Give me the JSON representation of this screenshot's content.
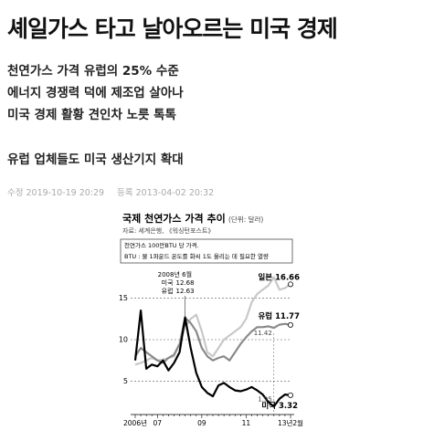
{
  "headline": "셰일가스 타고 날아오르는 미국 경제",
  "subheadings": [
    "천연가스 가격 유럽의 25% 수준",
    "에너지 경쟁력 덕에 제조업 살아나",
    "미국 경제 활황 견인차 노릇 톡톡",
    "유럽 업체들도 미국 생산기지 확대"
  ],
  "meta": {
    "modified": "수정 2019-10-19 20:29",
    "registered": "등록 2013-04-02 20:32"
  },
  "chart_data": {
    "type": "line",
    "title": "국제 천연가스 가격 추이",
    "unit": "(단위: 달러)",
    "source": "자료: 세계은행, 《워싱턴포스트》",
    "notes": [
      "천연가스 100만BTU 당 가격.",
      "BTU : 물 1파운드 온도를 화씨 1도 올리는 데 필요한 열량"
    ],
    "annotation": "2008년 6월",
    "categories": [
      "2006년",
      null,
      null,
      null,
      "07",
      null,
      null,
      null,
      null,
      null,
      null,
      null,
      "09",
      null,
      null,
      null,
      null,
      null,
      null,
      null,
      "11",
      null,
      null,
      null,
      null,
      null,
      null,
      null,
      "13년2월"
    ],
    "series": [
      {
        "name": "미국",
        "color": "#000000",
        "values": [
          7.5,
          13.5,
          6.5,
          7.0,
          6.8,
          7.5,
          6.3,
          7.2,
          8.5,
          12.68,
          9.0,
          6.0,
          4.3,
          3.6,
          3.2,
          4.5,
          4.8,
          4.3,
          3.9,
          3.8,
          4.0,
          4.3,
          3.9,
          3.4,
          2.5,
          1.95,
          2.9,
          3.4,
          3.32
        ]
      },
      {
        "name": "유럽",
        "color": "#8a8a8a",
        "values": [
          8.0,
          9.0,
          8.5,
          8.0,
          7.5,
          7.2,
          7.8,
          8.2,
          9.5,
          12.63,
          12.0,
          11.0,
          9.0,
          8.0,
          7.5,
          7.8,
          8.0,
          7.5,
          8.5,
          9.5,
          10.3,
          11.0,
          11.5,
          11.5,
          11.6,
          11.42,
          11.8,
          11.9,
          11.77
        ]
      },
      {
        "name": "일본",
        "color": "#c8c8c8",
        "values": [
          7.0,
          7.2,
          7.5,
          7.8,
          7.5,
          7.6,
          7.8,
          8.0,
          9.5,
          11.5,
          12.5,
          13.0,
          11.0,
          8.5,
          8.0,
          9.0,
          10.0,
          10.5,
          11.0,
          11.5,
          12.5,
          14.5,
          15.5,
          16.0,
          16.5,
          17.5,
          16.0,
          16.2,
          16.66
        ]
      }
    ],
    "ylim": [
      1,
      19
    ],
    "yticks": [
      5,
      10,
      15
    ],
    "grid": true
  }
}
